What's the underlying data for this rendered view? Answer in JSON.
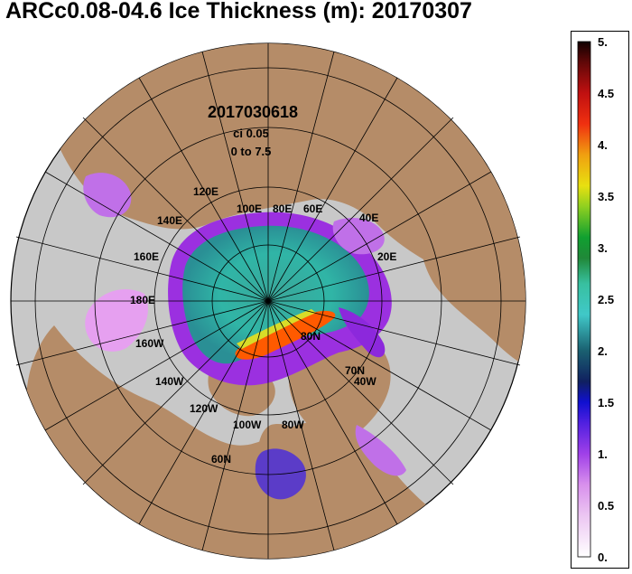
{
  "title": "ARCc0.08-04.6 Ice Thickness (m): 20170307",
  "annotation": {
    "datetime": "2017030618",
    "contour_interval": "ci 0.05",
    "range": "0 to 7.5"
  },
  "grid_labels": {
    "lon_120e": "120E",
    "lon_100e": "100E",
    "lon_80e": "80E",
    "lon_140e": "140E",
    "lon_60e": "60E",
    "lon_160e": "160E",
    "lon_40e": "40E",
    "lon_20e": "20E",
    "lon_180e": "180E",
    "lon_160w": "160W",
    "lon_140w": "140W",
    "lon_120w": "120W",
    "lon_100w": "100W",
    "lon_80w": "80W",
    "lon_40w": "40W",
    "lat_80n": "80N",
    "lat_70n": "70N",
    "lat_60n": "60N"
  },
  "colorbar": {
    "ticks": [
      "5.",
      "4.5",
      "4.",
      "3.5",
      "3.",
      "2.5",
      "2.",
      "1.5",
      "1.",
      "0.5",
      "0."
    ],
    "tick_values": [
      5,
      4.5,
      4,
      3.5,
      3,
      2.5,
      2,
      1.5,
      1,
      0.5,
      0
    ],
    "range": [
      0,
      5
    ]
  },
  "colors": {
    "land": "#b58c68",
    "ocean": "#c8c8c8",
    "thick_ice": "#ff5000",
    "medium_ice": "#3cc8b4",
    "thin_ice": "#8c28dc",
    "very_thin_ice": "#e6a0f0"
  }
}
